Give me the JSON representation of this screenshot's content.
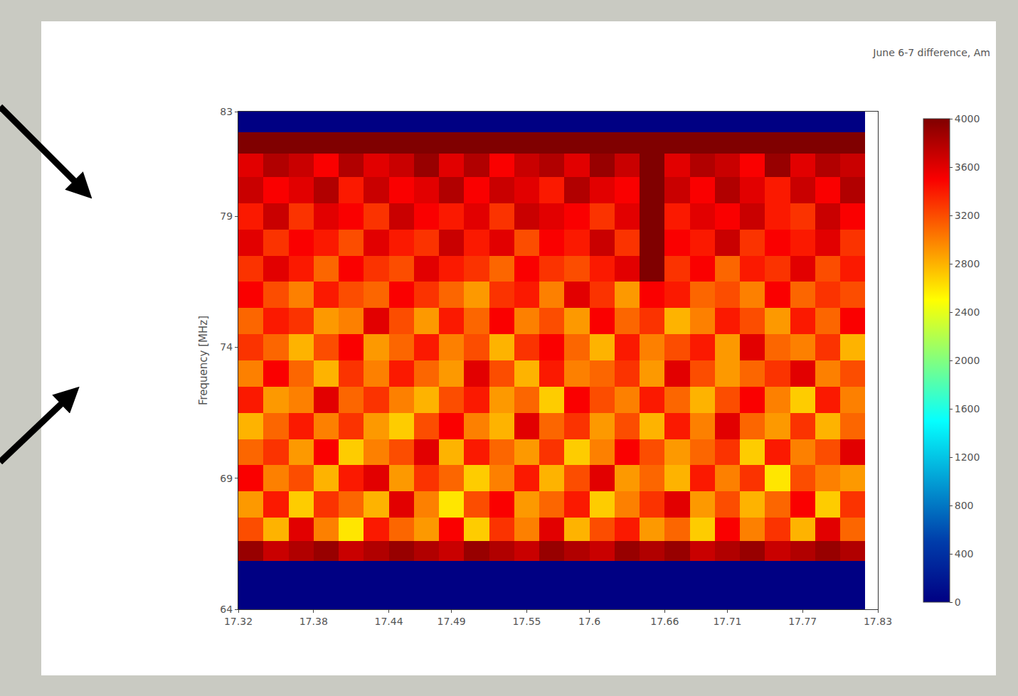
{
  "chart_data": {
    "type": "heatmap",
    "title": "June 6-7 difference, Am",
    "y_label": "Frequency [MHz]",
    "x": [
      17.33,
      17.35,
      17.37,
      17.39,
      17.41,
      17.43,
      17.45,
      17.47,
      17.49,
      17.51,
      17.53,
      17.55,
      17.57,
      17.59,
      17.61,
      17.63,
      17.65,
      17.67,
      17.69,
      17.71,
      17.73,
      17.75,
      17.77,
      17.79,
      17.81
    ],
    "y": [
      64.5,
      65.5,
      66.2,
      67,
      68,
      69,
      70,
      71,
      72,
      73,
      74,
      75,
      76,
      77,
      78,
      79,
      80,
      81,
      81.8,
      82.6
    ],
    "xlim": [
      17.32,
      17.83
    ],
    "ylim": [
      64,
      83
    ],
    "xticks": [
      17.32,
      17.38,
      17.44,
      17.49,
      17.55,
      17.6,
      17.66,
      17.71,
      17.77,
      17.83
    ],
    "yticks": [
      64,
      69,
      74,
      79,
      83
    ],
    "zlim": [
      0,
      4000
    ],
    "zticks": [
      0,
      400,
      800,
      1200,
      1600,
      2000,
      2400,
      2800,
      3200,
      3600,
      4000
    ],
    "grid": false,
    "z": [
      [
        0,
        0,
        0,
        0,
        0,
        0,
        0,
        0,
        0,
        0,
        0,
        0,
        0,
        0,
        0,
        0,
        0,
        0,
        0,
        0,
        0,
        0,
        0,
        0,
        0
      ],
      [
        0,
        0,
        0,
        0,
        0,
        0,
        0,
        0,
        0,
        0,
        0,
        0,
        0,
        0,
        0,
        0,
        0,
        0,
        0,
        0,
        0,
        0,
        0,
        0,
        0
      ],
      [
        3900,
        3700,
        3800,
        3900,
        3700,
        3800,
        3900,
        3800,
        3700,
        3900,
        3800,
        3700,
        3900,
        3800,
        3700,
        3900,
        3800,
        3900,
        3700,
        3800,
        3900,
        3700,
        3800,
        3900,
        3800
      ],
      [
        3200,
        2800,
        3600,
        3000,
        2600,
        3400,
        3100,
        2900,
        3500,
        2700,
        3300,
        3000,
        3600,
        2800,
        3200,
        3400,
        2900,
        3100,
        2700,
        3500,
        3000,
        3300,
        2800,
        3600,
        3100
      ],
      [
        2900,
        3400,
        2700,
        3300,
        3100,
        2800,
        3600,
        3000,
        2600,
        3200,
        3500,
        2900,
        3100,
        3400,
        2700,
        3000,
        3300,
        3600,
        2900,
        3200,
        2800,
        3100,
        3500,
        2700,
        3300
      ],
      [
        3500,
        3000,
        3200,
        2800,
        3400,
        3600,
        2900,
        3300,
        3100,
        2700,
        3000,
        3400,
        2800,
        3200,
        3600,
        2900,
        3100,
        2800,
        3400,
        3000,
        3300,
        2600,
        3200,
        3000,
        2900
      ],
      [
        3100,
        3300,
        2900,
        3500,
        2700,
        3000,
        3200,
        3600,
        2800,
        3400,
        3100,
        2900,
        3300,
        2700,
        3000,
        3500,
        3200,
        2900,
        3100,
        3300,
        2700,
        3400,
        3000,
        3200,
        3600
      ],
      [
        2800,
        3100,
        3400,
        3000,
        3300,
        2900,
        2700,
        3200,
        3500,
        3000,
        2800,
        3600,
        3100,
        3300,
        2900,
        3200,
        2800,
        3400,
        3000,
        3600,
        3100,
        2900,
        3300,
        2800,
        3100
      ],
      [
        3400,
        2900,
        3000,
        3600,
        3100,
        3300,
        3000,
        2800,
        3200,
        3400,
        2900,
        3100,
        2700,
        3500,
        3200,
        3000,
        3400,
        3100,
        2800,
        3200,
        3500,
        3000,
        2700,
        3400,
        3000
      ],
      [
        3000,
        3500,
        3100,
        2800,
        3300,
        3000,
        3400,
        3100,
        2900,
        3600,
        3200,
        2800,
        3400,
        3000,
        3100,
        3300,
        2900,
        3600,
        3200,
        2900,
        3100,
        3300,
        3600,
        3000,
        3200
      ],
      [
        3300,
        3100,
        2800,
        3200,
        3500,
        2900,
        3100,
        3400,
        3000,
        3200,
        2800,
        3300,
        3500,
        3100,
        2800,
        3400,
        3000,
        3200,
        3400,
        2900,
        3600,
        3100,
        3000,
        3300,
        2800
      ],
      [
        3100,
        3400,
        3300,
        2900,
        3000,
        3600,
        3200,
        2900,
        3400,
        3100,
        3500,
        3000,
        3200,
        2900,
        3500,
        3100,
        3300,
        2800,
        3000,
        3400,
        3200,
        2900,
        3400,
        3100,
        3500
      ],
      [
        3500,
        3200,
        3000,
        3400,
        3200,
        3100,
        3500,
        3300,
        3100,
        2900,
        3300,
        3400,
        3000,
        3600,
        3300,
        2900,
        3500,
        3400,
        3100,
        3200,
        3000,
        3500,
        3100,
        3300,
        3200
      ],
      [
        3300,
        3600,
        3400,
        3100,
        3500,
        3300,
        3200,
        3600,
        3400,
        3300,
        3100,
        3500,
        3300,
        3200,
        3400,
        3600,
        4000,
        3300,
        3500,
        3100,
        3400,
        3300,
        3600,
        3200,
        3400
      ],
      [
        3600,
        3300,
        3500,
        3400,
        3200,
        3600,
        3400,
        3300,
        3700,
        3400,
        3600,
        3200,
        3500,
        3400,
        3700,
        3300,
        4000,
        3500,
        3400,
        3700,
        3300,
        3500,
        3400,
        3600,
        3300
      ],
      [
        3400,
        3700,
        3300,
        3600,
        3500,
        3300,
        3700,
        3500,
        3400,
        3600,
        3300,
        3700,
        3600,
        3500,
        3300,
        3600,
        4000,
        3400,
        3600,
        3500,
        3700,
        3400,
        3300,
        3700,
        3500
      ],
      [
        3700,
        3500,
        3600,
        3800,
        3400,
        3700,
        3500,
        3600,
        3800,
        3500,
        3700,
        3600,
        3400,
        3800,
        3600,
        3500,
        4000,
        3700,
        3500,
        3800,
        3600,
        3400,
        3700,
        3500,
        3800
      ],
      [
        3600,
        3800,
        3700,
        3500,
        3800,
        3600,
        3700,
        3900,
        3600,
        3800,
        3500,
        3700,
        3800,
        3600,
        3900,
        3700,
        4000,
        3600,
        3800,
        3700,
        3500,
        3900,
        3600,
        3800,
        3700
      ],
      [
        4000,
        4000,
        4000,
        4000,
        4000,
        4000,
        4000,
        4000,
        4000,
        4000,
        4000,
        4000,
        4000,
        4000,
        4000,
        4000,
        4000,
        4000,
        4000,
        4000,
        4000,
        4000,
        4000,
        4000,
        4000
      ],
      [
        0,
        0,
        0,
        0,
        0,
        0,
        0,
        0,
        0,
        0,
        0,
        0,
        0,
        0,
        0,
        0,
        0,
        0,
        0,
        0,
        0,
        0,
        0,
        0,
        0
      ]
    ]
  }
}
